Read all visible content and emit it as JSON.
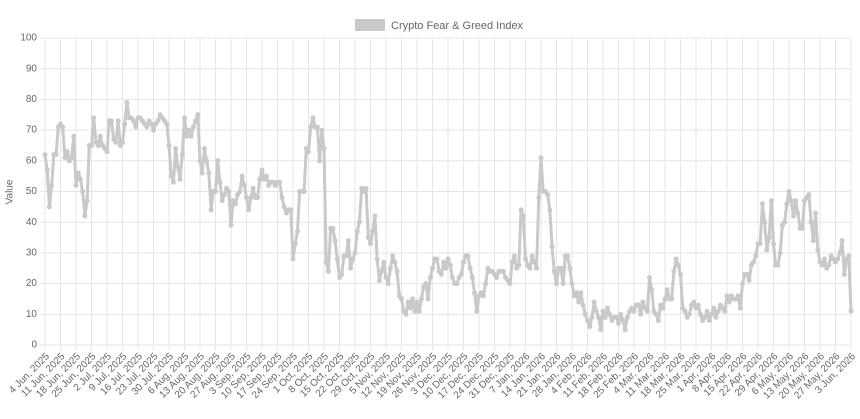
{
  "chart_data": {
    "type": "line",
    "y_label": "Value",
    "categories": [
      "4 Jun, 2025",
      null,
      null,
      null,
      null,
      null,
      null,
      "11 Jun, 2025",
      null,
      null,
      null,
      null,
      null,
      null,
      "18 Jun, 2025",
      null,
      null,
      null,
      null,
      null,
      null,
      "25 Jun, 2025",
      null,
      null,
      null,
      null,
      null,
      null,
      "2 Jul, 2025",
      null,
      null,
      null,
      null,
      null,
      null,
      "9 Jul, 2025",
      null,
      null,
      null,
      null,
      null,
      null,
      "16 Jul, 2025",
      null,
      null,
      null,
      null,
      null,
      null,
      "23 Jul, 2025",
      null,
      null,
      null,
      null,
      null,
      null,
      "30 Jul, 2025",
      null,
      null,
      null,
      null,
      null,
      null,
      "6 Aug, 2025",
      null,
      null,
      null,
      null,
      null,
      null,
      "13 Aug, 2025",
      null,
      null,
      null,
      null,
      null,
      null,
      "20 Aug, 2025",
      null,
      null,
      null,
      null,
      null,
      null,
      "27 Aug, 2025",
      null,
      null,
      null,
      null,
      null,
      null,
      "3 Sep, 2025",
      null,
      null,
      null,
      null,
      null,
      null,
      "10 Sep, 2025",
      null,
      null,
      null,
      null,
      null,
      null,
      "17 Sep, 2025",
      null,
      null,
      null,
      null,
      null,
      null,
      "24 Sep, 2025",
      null,
      null,
      null,
      null,
      null,
      null,
      "1 Oct, 2025",
      null,
      null,
      null,
      null,
      null,
      null,
      "8 Oct, 2025",
      null,
      null,
      null,
      null,
      null,
      null,
      "15 Oct, 2025",
      null,
      null,
      null,
      null,
      null,
      null,
      "22 Oct, 2025",
      null,
      null,
      null,
      null,
      null,
      null,
      "29 Oct, 2025",
      null,
      null,
      null,
      null,
      null,
      null,
      "5 Nov, 2025",
      null,
      null,
      null,
      null,
      null,
      null,
      "12 Nov, 2025",
      null,
      null,
      null,
      null,
      null,
      null,
      "19 Nov, 2025",
      null,
      null,
      null,
      null,
      null,
      null,
      "26 Nov, 2025",
      null,
      null,
      null,
      null,
      null,
      null,
      "3 Dec, 2025",
      null,
      null,
      null,
      null,
      null,
      null,
      "10 Dec, 2025",
      null,
      null,
      null,
      null,
      null,
      null,
      "17 Dec, 2025",
      null,
      null,
      null,
      null,
      null,
      null,
      "24 Dec, 2025",
      null,
      null,
      null,
      null,
      null,
      null,
      "31 Dec, 2025",
      null,
      null,
      null,
      null,
      null,
      null,
      "7 Jan, 2026",
      null,
      null,
      null,
      null,
      null,
      null,
      "14 Jan, 2026",
      null,
      null,
      null,
      null,
      null,
      null,
      "21 Jan, 2026",
      null,
      null,
      null,
      null,
      null,
      null,
      "28 Jan, 2026",
      null,
      null,
      null,
      null,
      null,
      null,
      "4 Feb, 2026",
      null,
      null,
      null,
      null,
      null,
      null,
      "11 Feb, 2026",
      null,
      null,
      null,
      null,
      null,
      null,
      "18 Feb, 2026",
      null,
      null,
      null,
      null,
      null,
      null,
      "25 Feb, 2026",
      null,
      null,
      null,
      null,
      null,
      null,
      "4 Mar, 2026",
      null,
      null,
      null,
      null,
      null,
      null,
      "11 Mar, 2026",
      null,
      null,
      null,
      null,
      null,
      null,
      "18 Mar, 2026",
      null,
      null,
      null,
      null,
      null,
      null,
      "25 Mar, 2026",
      null,
      null,
      null,
      null,
      null,
      null,
      "1 Apr, 2026",
      null,
      null,
      null,
      null,
      null,
      null,
      "8 Apr, 2026",
      null,
      null,
      null,
      null,
      null,
      null,
      "15 Apr, 2026",
      null,
      null,
      null,
      null,
      null,
      null,
      "22 Apr, 2026",
      null,
      null,
      null,
      null,
      null,
      null,
      "29 Apr, 2026",
      null,
      null,
      null,
      null,
      null,
      null,
      "6 May, 2026",
      null,
      null,
      null,
      null,
      null,
      null,
      "13 May, 2026",
      null,
      null,
      null,
      null,
      null,
      null,
      "20 May, 2026",
      null,
      null,
      null,
      null,
      null,
      null,
      "27 May, 2026",
      null,
      null,
      null,
      null,
      null,
      null,
      "3 Jun, 2026"
    ],
    "series": [
      {
        "name": "Crypto Fear & Greed Index",
        "color": "#c9c9c9",
        "values": [
          62,
          57,
          45,
          52,
          62,
          62,
          71,
          72,
          71,
          61,
          63,
          60,
          61,
          68,
          52,
          56,
          54,
          50,
          42,
          47,
          65,
          65,
          74,
          66,
          65,
          68,
          65,
          64,
          63,
          73,
          73,
          67,
          66,
          73,
          65,
          66,
          72,
          79,
          74,
          74,
          73,
          71,
          74,
          74,
          73,
          72,
          71,
          73,
          72,
          70,
          72,
          73,
          75,
          74,
          73,
          72,
          65,
          55,
          53,
          64,
          58,
          54,
          62,
          74,
          68,
          70,
          68,
          71,
          73,
          75,
          60,
          56,
          64,
          60,
          56,
          44,
          50,
          50,
          60,
          53,
          47,
          49,
          51,
          50,
          39,
          47,
          46,
          49,
          50,
          55,
          52,
          48,
          44,
          48,
          51,
          48,
          48,
          54,
          57,
          54,
          55,
          52,
          53,
          53,
          52,
          53,
          53,
          48,
          45,
          43,
          44,
          44,
          28,
          33,
          37,
          50,
          50,
          50,
          64,
          63,
          71,
          74,
          71,
          71,
          60,
          70,
          64,
          27,
          24,
          38,
          38,
          34,
          28,
          22,
          23,
          29,
          29,
          34,
          25,
          28,
          30,
          37,
          40,
          51,
          50,
          51,
          35,
          33,
          37,
          42,
          28,
          21,
          24,
          27,
          22,
          20,
          25,
          29,
          27,
          24,
          16,
          15,
          11,
          10,
          14,
          12,
          15,
          11,
          14,
          11,
          15,
          19,
          20,
          15,
          22,
          25,
          28,
          28,
          24,
          23,
          27,
          25,
          28,
          26,
          22,
          20,
          20,
          22,
          23,
          27,
          29,
          29,
          25,
          22,
          17,
          11,
          16,
          17,
          16,
          20,
          25,
          24,
          24,
          23,
          22,
          24,
          24,
          24,
          22,
          21,
          20,
          27,
          29,
          25,
          26,
          44,
          42,
          28,
          26,
          25,
          29,
          27,
          25,
          48,
          61,
          50,
          50,
          49,
          44,
          32,
          24,
          20,
          25,
          25,
          20,
          29,
          29,
          25,
          20,
          16,
          17,
          14,
          17,
          13,
          10,
          8,
          6,
          9,
          14,
          11,
          9,
          5,
          11,
          9,
          12,
          10,
          8,
          9,
          9,
          7,
          10,
          8,
          5,
          9,
          11,
          12,
          11,
          13,
          13,
          10,
          14,
          12,
          11,
          22,
          18,
          11,
          10,
          8,
          13,
          12,
          15,
          18,
          15,
          15,
          24,
          28,
          26,
          23,
          12,
          11,
          9,
          10,
          13,
          14,
          12,
          13,
          10,
          8,
          9,
          11,
          8,
          10,
          12,
          9,
          11,
          13,
          12,
          11,
          16,
          14,
          16,
          15,
          15,
          16,
          12,
          20,
          23,
          23,
          21,
          26,
          27,
          29,
          33,
          33,
          46,
          40,
          31,
          35,
          47,
          33,
          26,
          26,
          30,
          39,
          40,
          46,
          50,
          47,
          42,
          47,
          43,
          38,
          38,
          47,
          48,
          49,
          40,
          34,
          43,
          31,
          27,
          26,
          28,
          25,
          26,
          29,
          28,
          27,
          28,
          30,
          34,
          23,
          28,
          29,
          11
        ]
      }
    ],
    "ylim": [
      0,
      100
    ],
    "yticks": [
      0,
      10,
      20,
      30,
      40,
      50,
      60,
      70,
      80,
      90,
      100
    ],
    "grid": true,
    "legend": "top"
  }
}
